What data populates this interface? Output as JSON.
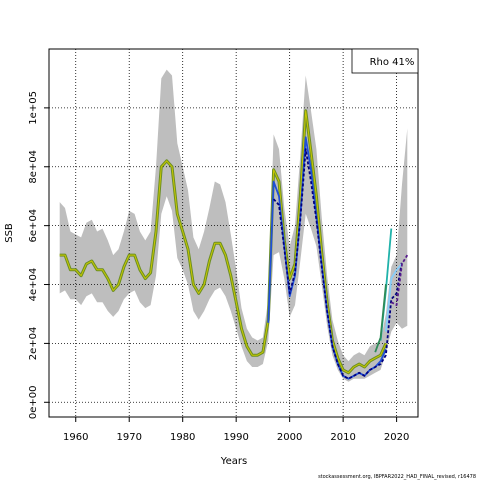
{
  "chart_data": {
    "type": "line",
    "xlabel": "Years",
    "ylabel": "SSB",
    "footer": "stockassessment.org, IBPFAR2022_HAD_FINAL_revised, r16478",
    "annotation": "Rho 41%",
    "xlim": [
      1955,
      2024
    ],
    "ylim": [
      -5000,
      120000
    ],
    "x_ticks": [
      1960,
      1970,
      1980,
      1990,
      2000,
      2010,
      2020
    ],
    "y_ticks": [
      0,
      20000,
      40000,
      60000,
      80000,
      100000
    ],
    "y_tick_labels": [
      "0e+00",
      "2e+04",
      "4e+04",
      "6e+04",
      "8e+04",
      "1e+05"
    ],
    "grid": true,
    "colors": {
      "band": "#bebebe",
      "main": "#6b8e23",
      "main_inner": "#c8c800",
      "blue": "#1f4fd8",
      "navy": "#000080",
      "lightblue": "#87cefa",
      "teal": "#20b2aa",
      "green": "#2e8b57",
      "purple": "#551a8b"
    },
    "band": {
      "x": [
        1957,
        1958,
        1959,
        1960,
        1961,
        1962,
        1963,
        1964,
        1965,
        1966,
        1967,
        1968,
        1969,
        1970,
        1971,
        1972,
        1973,
        1974,
        1975,
        1976,
        1977,
        1978,
        1979,
        1980,
        1981,
        1982,
        1983,
        1984,
        1985,
        1986,
        1987,
        1988,
        1989,
        1990,
        1991,
        1992,
        1993,
        1994,
        1995,
        1996,
        1997,
        1998,
        1999,
        2000,
        2001,
        2002,
        2003,
        2004,
        2005,
        2006,
        2007,
        2008,
        2009,
        2010,
        2011,
        2012,
        2013,
        2014,
        2015,
        2016,
        2017,
        2018,
        2019,
        2020,
        2021,
        2022
      ],
      "lower": [
        37000,
        38000,
        35000,
        35000,
        33000,
        36000,
        37000,
        34000,
        34000,
        31000,
        29000,
        31000,
        35000,
        37000,
        38000,
        34000,
        32000,
        33000,
        43000,
        64000,
        70000,
        65000,
        49000,
        45000,
        40000,
        31000,
        28000,
        31000,
        35000,
        38000,
        39000,
        36000,
        31000,
        25000,
        19000,
        14000,
        12000,
        12000,
        13000,
        21000,
        50000,
        51000,
        42000,
        29000,
        33000,
        48000,
        64000,
        59000,
        53000,
        40000,
        26000,
        16000,
        11000,
        8000,
        7000,
        8000,
        8000,
        8000,
        9000,
        10000,
        11000,
        17000,
        24000,
        27000,
        25000,
        26000
      ],
      "upper": [
        68000,
        66000,
        58000,
        57000,
        56000,
        61000,
        62000,
        58000,
        59000,
        55000,
        50000,
        52000,
        58000,
        65000,
        64000,
        58000,
        55000,
        58000,
        80000,
        110000,
        113000,
        111000,
        88000,
        80000,
        72000,
        56000,
        52000,
        58000,
        66000,
        75000,
        74000,
        68000,
        57000,
        45000,
        32000,
        25000,
        22000,
        21000,
        22000,
        35000,
        91000,
        86000,
        66000,
        53000,
        60000,
        84000,
        111000,
        99000,
        86000,
        63000,
        43000,
        28000,
        21000,
        16000,
        14000,
        16000,
        17000,
        16000,
        19000,
        20000,
        21000,
        30000,
        46000,
        50000,
        74000,
        93000
      ]
    },
    "series": [
      {
        "color_key": "main",
        "x": [
          1957,
          1958,
          1959,
          1960,
          1961,
          1962,
          1963,
          1964,
          1965,
          1966,
          1967,
          1968,
          1969,
          1970,
          1971,
          1972,
          1973,
          1974,
          1975,
          1976,
          1977,
          1978,
          1979,
          1980,
          1981,
          1982,
          1983,
          1984,
          1985,
          1986,
          1987,
          1988,
          1989,
          1990,
          1991,
          1992,
          1993,
          1994,
          1995,
          1996,
          1997,
          1998,
          1999,
          2000,
          2001,
          2002,
          2003,
          2004,
          2005,
          2006,
          2007,
          2008,
          2009,
          2010,
          2011,
          2012,
          2013,
          2014,
          2015,
          2016,
          2017,
          2018
        ],
        "values": [
          50000,
          50000,
          45000,
          45000,
          43000,
          47000,
          48000,
          45000,
          45000,
          42000,
          38000,
          40000,
          46000,
          50000,
          50000,
          45000,
          42000,
          44000,
          58000,
          80000,
          82000,
          80000,
          64000,
          58000,
          52000,
          40000,
          37000,
          40000,
          48000,
          54000,
          54000,
          50000,
          43000,
          34000,
          25000,
          19000,
          16000,
          16000,
          17000,
          28000,
          79000,
          75000,
          55000,
          42000,
          47000,
          70000,
          99000,
          85000,
          70000,
          51000,
          34000,
          21000,
          15000,
          11000,
          10000,
          12000,
          13000,
          12000,
          14000,
          15000,
          16000,
          20000
        ]
      },
      {
        "color_key": "blue",
        "x": [
          1996,
          1997,
          1998,
          1999,
          2000,
          2001,
          2002,
          2003,
          2004,
          2005,
          2006,
          2007,
          2008,
          2009,
          2010,
          2011,
          2012,
          2013,
          2014,
          2015,
          2016,
          2017,
          2018
        ],
        "values": [
          27000,
          75000,
          70000,
          53000,
          36000,
          43000,
          63000,
          90000,
          79000,
          63000,
          47000,
          31000,
          19000,
          13000,
          9000,
          8000,
          9000,
          10000,
          9000,
          11000,
          12000,
          14000,
          18000
        ]
      },
      {
        "color_key": "navy",
        "x": [
          1997,
          1998,
          2000,
          2001,
          2002,
          2003,
          2004,
          2005,
          2006,
          2007,
          2008,
          2009,
          2010,
          2011,
          2012,
          2013,
          2014,
          2015,
          2016,
          2017,
          2018,
          2019,
          2020,
          2021
        ],
        "values": [
          69000,
          67000,
          37000,
          44000,
          62000,
          86000,
          75000,
          62000,
          46000,
          31000,
          19000,
          13000,
          9000,
          8000,
          9000,
          10000,
          9000,
          11000,
          12000,
          13000,
          16000,
          35000,
          37000,
          48000
        ]
      },
      {
        "color_key": "lightblue",
        "x": [
          2018,
          2019,
          2020,
          2021
        ],
        "values": [
          24000,
          42000,
          45000,
          47000
        ]
      },
      {
        "color_key": "teal",
        "x": [
          2017,
          2018,
          2019
        ],
        "values": [
          21000,
          38000,
          59000
        ]
      },
      {
        "color_key": "green",
        "x": [
          2016,
          2017,
          2018
        ],
        "values": [
          17000,
          22000,
          40000
        ]
      },
      {
        "color_key": "purple",
        "x": [
          2019,
          2020,
          2021,
          2022
        ],
        "values": [
          34000,
          33000,
          47000,
          50000
        ]
      }
    ]
  }
}
